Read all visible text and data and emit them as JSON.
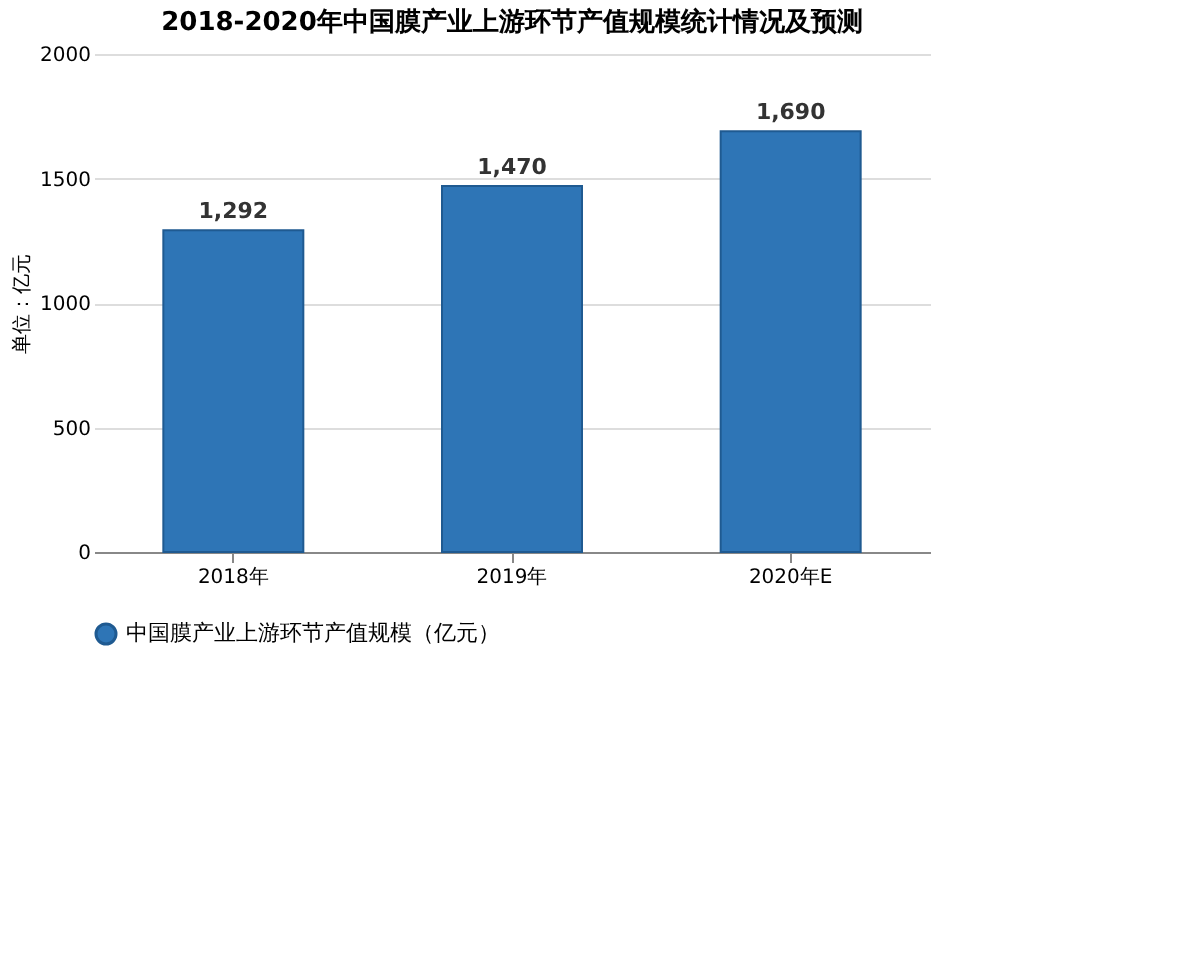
{
  "chart_data": {
    "type": "bar",
    "title": "2018-2020年中国膜产业上游环节产值规模统计情况及预测",
    "ylabel": "单位：亿元",
    "categories": [
      "2018年",
      "2019年",
      "2020年E"
    ],
    "series": [
      {
        "name": "中国膜产业上游环节产值规模（亿元）",
        "color": "#2e75b6",
        "values": [
          1292,
          1470,
          1690
        ],
        "value_labels": [
          "1,292",
          "1,470",
          "1,690"
        ]
      }
    ],
    "ylim": [
      0,
      2000
    ],
    "yticks": [
      0,
      500,
      1000,
      1500,
      2000
    ],
    "grid": "y",
    "legend": "bottom"
  }
}
